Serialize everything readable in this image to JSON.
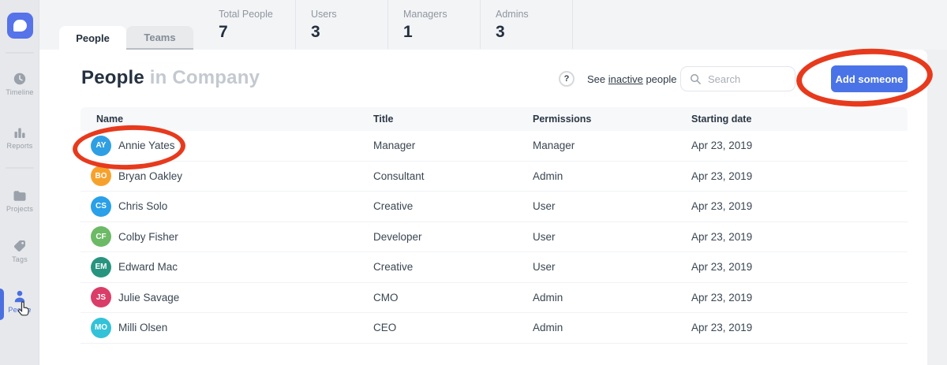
{
  "sidebar": {
    "items": [
      {
        "id": "timeline",
        "label": "Timeline",
        "icon": "clock-icon",
        "active": false
      },
      {
        "id": "reports",
        "label": "Reports",
        "icon": "bar-chart-icon",
        "active": false
      },
      {
        "id": "projects",
        "label": "Projects",
        "icon": "folder-icon",
        "active": false
      },
      {
        "id": "tags",
        "label": "Tags",
        "icon": "tag-icon",
        "active": false
      },
      {
        "id": "people",
        "label": "People",
        "icon": "person-icon",
        "active": true
      }
    ]
  },
  "tabs": [
    {
      "label": "People",
      "active": true
    },
    {
      "label": "Teams",
      "active": false
    }
  ],
  "stats": [
    {
      "label": "Total People",
      "value": "7"
    },
    {
      "label": "Users",
      "value": "3"
    },
    {
      "label": "Managers",
      "value": "1"
    },
    {
      "label": "Admins",
      "value": "3"
    }
  ],
  "toolbar": {
    "title_primary": "People",
    "title_secondary": " in Company",
    "help_label": "?",
    "inactive_prefix": "See ",
    "inactive_link": "inactive",
    "inactive_suffix": " people",
    "search_placeholder": "Search",
    "add_button_label": "Add someone"
  },
  "table": {
    "columns": [
      "Name",
      "Title",
      "Permissions",
      "Starting date"
    ],
    "rows": [
      {
        "initials": "AY",
        "avatar_color": "#2f9fe4",
        "name": "Annie Yates",
        "title": "Manager",
        "permissions": "Manager",
        "starting_date": "Apr 23, 2019"
      },
      {
        "initials": "BO",
        "avatar_color": "#f7a12d",
        "name": "Bryan Oakley",
        "title": "Consultant",
        "permissions": "Admin",
        "starting_date": "Apr 23, 2019"
      },
      {
        "initials": "CS",
        "avatar_color": "#29a0e8",
        "name": "Chris Solo",
        "title": "Creative",
        "permissions": "User",
        "starting_date": "Apr 23, 2019"
      },
      {
        "initials": "CF",
        "avatar_color": "#6cb966",
        "name": "Colby Fisher",
        "title": "Developer",
        "permissions": "User",
        "starting_date": "Apr 23, 2019"
      },
      {
        "initials": "EM",
        "avatar_color": "#27947f",
        "name": "Edward Mac",
        "title": "Creative",
        "permissions": "User",
        "starting_date": "Apr 23, 2019"
      },
      {
        "initials": "JS",
        "avatar_color": "#da3d68",
        "name": "Julie Savage",
        "title": "CMO",
        "permissions": "Admin",
        "starting_date": "Apr 23, 2019"
      },
      {
        "initials": "MO",
        "avatar_color": "#33c2d8",
        "name": "Milli Olsen",
        "title": "CEO",
        "permissions": "Admin",
        "starting_date": "Apr 23, 2019"
      }
    ]
  },
  "annotations": {
    "highlight_color": "#e73a1d"
  },
  "colors": {
    "accent_blue": "#4a73e8",
    "sidebar_active_blue": "#4a6fe0"
  }
}
